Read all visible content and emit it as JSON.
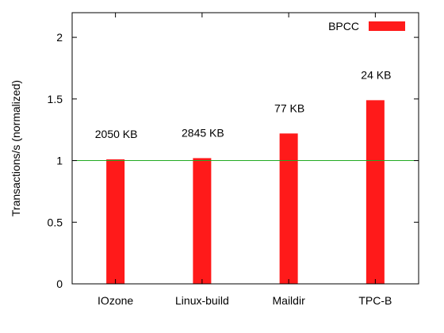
{
  "chart_data": {
    "type": "bar",
    "title": "",
    "xlabel": "",
    "ylabel": "Transactions/s (normalized)",
    "categories": [
      "IOzone",
      "Linux-build",
      "Maildir",
      "TPC-B"
    ],
    "series": [
      {
        "name": "BPCC",
        "values": [
          1.01,
          1.02,
          1.22,
          1.49
        ],
        "data_labels": [
          "2050 KB",
          "2845 KB",
          "77 KB",
          "24 KB"
        ],
        "color": "#ff1a1a"
      }
    ],
    "ylim": [
      0,
      2.2
    ],
    "yticks": [
      0,
      0.5,
      1,
      1.5,
      2
    ],
    "ytick_labels": [
      "0",
      "0.5",
      "1",
      "1.5",
      "2"
    ],
    "reference_line": {
      "y": 1,
      "color": "#22aa22"
    },
    "grid": false,
    "legend": "top-right"
  }
}
